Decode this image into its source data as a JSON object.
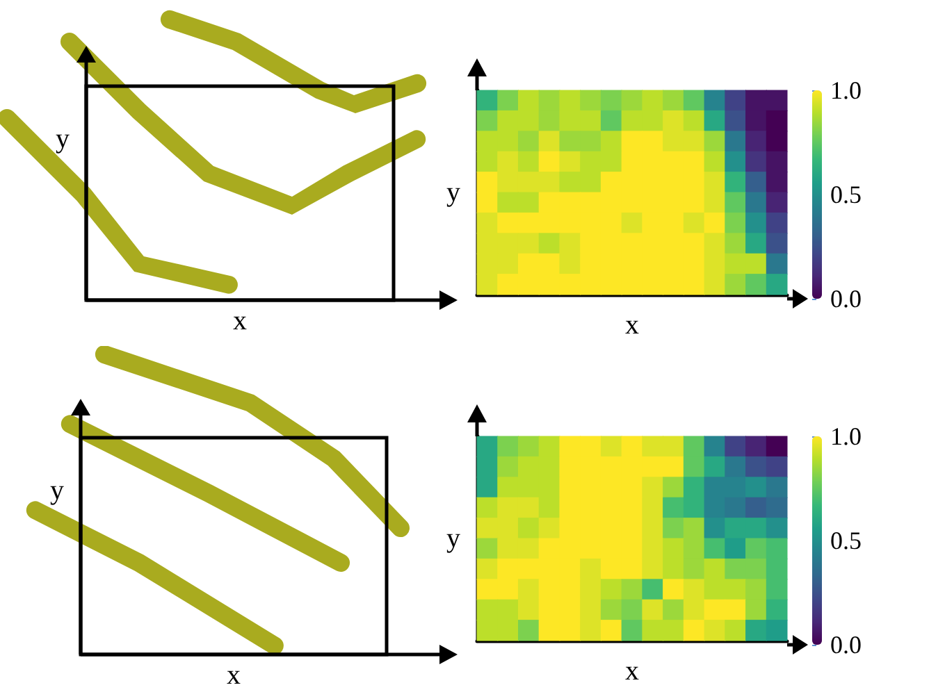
{
  "chart_data": [
    {
      "type": "other",
      "xlabel": "x",
      "ylabel": "y"
    },
    {
      "type": "heatmap",
      "xlabel": "x",
      "ylabel": "y",
      "tick_labels": false,
      "categories": [
        null,
        null,
        null,
        null,
        null,
        null,
        null,
        null,
        null,
        null,
        null,
        null,
        null,
        null,
        null
      ],
      "y_categories": [
        null,
        null,
        null,
        null,
        null,
        null,
        null,
        null,
        null,
        null
      ],
      "cells": [
        [
          0.65,
          0.8,
          0.9,
          0.85,
          0.9,
          0.85,
          0.8,
          0.85,
          0.9,
          0.85,
          0.75,
          0.45,
          0.2,
          0.05,
          0.05
        ],
        [
          0.8,
          0.9,
          0.9,
          0.85,
          0.9,
          0.9,
          0.75,
          0.9,
          0.9,
          0.95,
          0.9,
          0.6,
          0.25,
          0.05,
          0.0
        ],
        [
          0.9,
          0.9,
          0.85,
          0.95,
          0.85,
          0.85,
          0.9,
          1.0,
          1.0,
          0.95,
          0.95,
          0.85,
          0.4,
          0.1,
          0.0
        ],
        [
          0.9,
          0.95,
          0.9,
          1.0,
          0.95,
          0.9,
          0.9,
          1.0,
          1.0,
          1.0,
          1.0,
          0.9,
          0.5,
          0.15,
          0.05
        ],
        [
          1.0,
          0.95,
          0.95,
          0.95,
          0.9,
          0.9,
          1.0,
          1.0,
          1.0,
          1.0,
          1.0,
          0.95,
          0.65,
          0.3,
          0.05
        ],
        [
          1.0,
          0.9,
          0.9,
          1.0,
          1.0,
          1.0,
          1.0,
          1.0,
          1.0,
          1.0,
          1.0,
          0.95,
          0.75,
          0.4,
          0.1
        ],
        [
          0.95,
          1.0,
          1.0,
          1.0,
          1.0,
          1.0,
          1.0,
          0.95,
          1.0,
          1.0,
          0.95,
          1.0,
          0.8,
          0.5,
          0.2
        ],
        [
          0.95,
          0.95,
          0.95,
          0.9,
          0.95,
          1.0,
          1.0,
          1.0,
          1.0,
          1.0,
          1.0,
          0.95,
          0.85,
          0.6,
          0.25
        ],
        [
          0.95,
          0.95,
          1.0,
          1.0,
          0.95,
          1.0,
          1.0,
          1.0,
          1.0,
          1.0,
          1.0,
          0.95,
          0.9,
          0.9,
          0.4
        ],
        [
          0.95,
          1.0,
          1.0,
          1.0,
          1.0,
          1.0,
          1.0,
          1.0,
          1.0,
          1.0,
          1.0,
          0.95,
          0.85,
          0.75,
          0.6
        ]
      ],
      "clim": [
        0,
        1
      ],
      "cticks": [
        {
          "value": 0,
          "label": "0.0"
        },
        {
          "value": 0.5,
          "label": "0.5"
        },
        {
          "value": 1,
          "label": "1.0"
        }
      ]
    },
    {
      "type": "other",
      "xlabel": "x",
      "ylabel": "y"
    },
    {
      "type": "heatmap",
      "xlabel": "x",
      "ylabel": "y",
      "tick_labels": false,
      "categories": [
        null,
        null,
        null,
        null,
        null,
        null,
        null,
        null,
        null,
        null,
        null,
        null,
        null,
        null,
        null
      ],
      "y_categories": [
        null,
        null,
        null,
        null,
        null,
        null,
        null,
        null,
        null,
        null
      ],
      "cells": [
        [
          0.6,
          0.8,
          0.85,
          0.9,
          1.0,
          1.0,
          0.95,
          1.0,
          0.95,
          0.95,
          0.75,
          0.45,
          0.2,
          0.1,
          0.0
        ],
        [
          0.6,
          0.85,
          0.9,
          0.9,
          1.0,
          1.0,
          1.0,
          1.0,
          1.0,
          1.0,
          0.75,
          0.6,
          0.4,
          0.25,
          0.2
        ],
        [
          0.6,
          0.9,
          0.9,
          0.9,
          1.0,
          1.0,
          1.0,
          1.0,
          0.95,
          0.85,
          0.65,
          0.45,
          0.45,
          0.5,
          0.4
        ],
        [
          0.9,
          0.95,
          0.95,
          0.9,
          1.0,
          1.0,
          1.0,
          1.0,
          0.95,
          0.7,
          0.65,
          0.45,
          0.4,
          0.3,
          0.35
        ],
        [
          0.95,
          0.95,
          0.9,
          0.95,
          1.0,
          1.0,
          1.0,
          1.0,
          0.95,
          0.8,
          0.85,
          0.5,
          0.6,
          0.6,
          0.5
        ],
        [
          0.85,
          0.95,
          0.95,
          1.0,
          1.0,
          1.0,
          1.0,
          1.0,
          0.95,
          0.9,
          0.85,
          0.7,
          0.55,
          0.75,
          0.7
        ],
        [
          0.95,
          1.0,
          1.0,
          1.0,
          1.0,
          0.95,
          1.0,
          1.0,
          0.95,
          0.9,
          0.85,
          0.9,
          0.8,
          0.8,
          0.7
        ],
        [
          1.0,
          1.0,
          0.95,
          1.0,
          1.0,
          0.95,
          0.9,
          0.85,
          0.7,
          1.0,
          0.95,
          0.9,
          0.9,
          0.85,
          0.7
        ],
        [
          0.9,
          0.9,
          0.95,
          1.0,
          1.0,
          0.95,
          0.85,
          0.8,
          0.95,
          0.85,
          0.95,
          1.0,
          1.0,
          0.85,
          0.65
        ],
        [
          0.9,
          0.9,
          0.8,
          1.0,
          1.0,
          0.95,
          1.0,
          0.75,
          0.9,
          0.9,
          1.0,
          0.95,
          0.9,
          0.6,
          0.55
        ]
      ],
      "clim": [
        0,
        1
      ],
      "cticks": [
        {
          "value": 0,
          "label": "0.0"
        },
        {
          "value": 0.5,
          "label": "0.5"
        },
        {
          "value": 1,
          "label": "1.0"
        }
      ]
    }
  ]
}
